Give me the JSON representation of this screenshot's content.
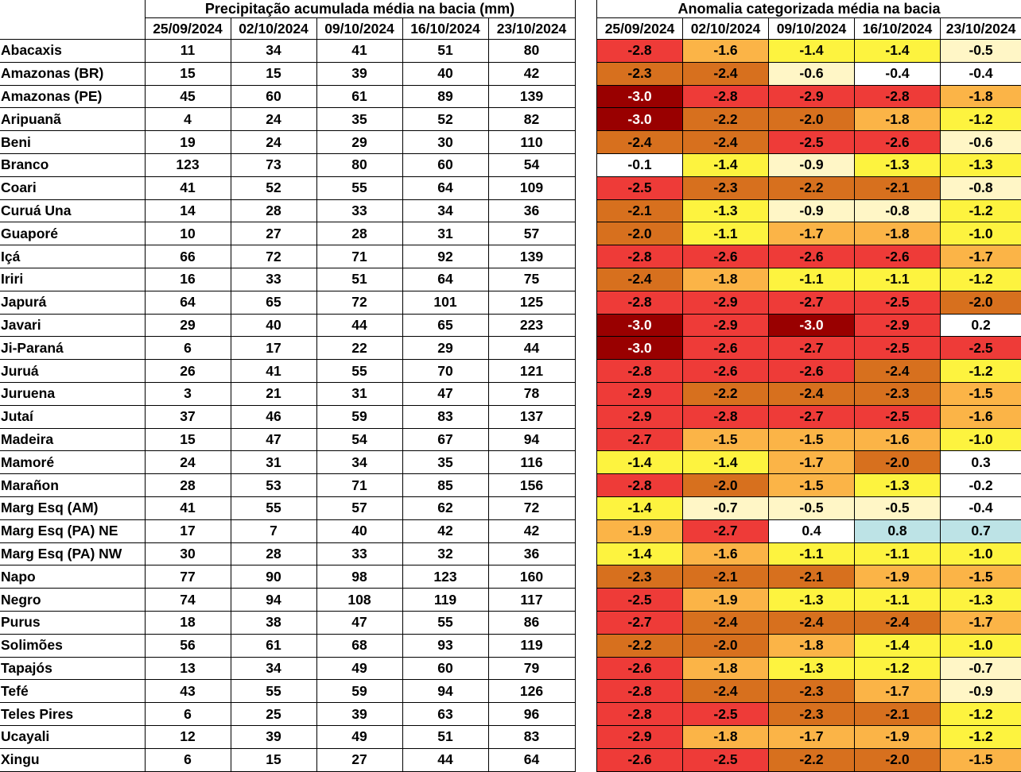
{
  "precip_title": "Precipitação acumulada média na bacia (mm)",
  "anom_title": "Anomalia categorizada média na bacia",
  "dates": [
    "25/09/2024",
    "02/10/2024",
    "09/10/2024",
    "16/10/2024",
    "23/10/2024"
  ],
  "category_colors": {
    "-3": "#990000",
    "-2.5": "#ee3b38",
    "-2": "#d7701e",
    "-1.5": "#fbb447",
    "-1": "#fdf33f",
    "-0.5": "#fff6c6",
    "0": "#ffffff",
    "0.5": "#bde3e6"
  },
  "rows": [
    {
      "name": "Abacaxis",
      "precip": [
        "11",
        "34",
        "41",
        "51",
        "80"
      ],
      "anom": [
        "-2.8",
        "-1.6",
        "-1.4",
        "-1.4",
        "-0.5"
      ]
    },
    {
      "name": "Amazonas (BR)",
      "precip": [
        "15",
        "15",
        "39",
        "40",
        "42"
      ],
      "anom": [
        "-2.3",
        "-2.4",
        "-0.6",
        "-0.4",
        "-0.4"
      ]
    },
    {
      "name": "Amazonas (PE)",
      "precip": [
        "45",
        "60",
        "61",
        "89",
        "139"
      ],
      "anom": [
        "-3.0",
        "-2.8",
        "-2.9",
        "-2.8",
        "-1.8"
      ]
    },
    {
      "name": "Aripuanã",
      "precip": [
        "4",
        "24",
        "35",
        "52",
        "82"
      ],
      "anom": [
        "-3.0",
        "-2.2",
        "-2.0",
        "-1.8",
        "-1.2"
      ]
    },
    {
      "name": "Beni",
      "precip": [
        "19",
        "24",
        "29",
        "30",
        "110"
      ],
      "anom": [
        "-2.4",
        "-2.4",
        "-2.5",
        "-2.6",
        "-0.6"
      ]
    },
    {
      "name": "Branco",
      "precip": [
        "123",
        "73",
        "80",
        "60",
        "54"
      ],
      "anom": [
        "-0.1",
        "-1.4",
        "-0.9",
        "-1.3",
        "-1.3"
      ]
    },
    {
      "name": "Coari",
      "precip": [
        "41",
        "52",
        "55",
        "64",
        "109"
      ],
      "anom": [
        "-2.5",
        "-2.3",
        "-2.2",
        "-2.1",
        "-0.8"
      ]
    },
    {
      "name": "Curuá Una",
      "precip": [
        "14",
        "28",
        "33",
        "34",
        "36"
      ],
      "anom": [
        "-2.1",
        "-1.3",
        "-0.9",
        "-0.8",
        "-1.2"
      ]
    },
    {
      "name": "Guaporé",
      "precip": [
        "10",
        "27",
        "28",
        "31",
        "57"
      ],
      "anom": [
        "-2.0",
        "-1.1",
        "-1.7",
        "-1.8",
        "-1.0"
      ]
    },
    {
      "name": "Içá",
      "precip": [
        "66",
        "72",
        "71",
        "92",
        "139"
      ],
      "anom": [
        "-2.8",
        "-2.6",
        "-2.6",
        "-2.6",
        "-1.7"
      ]
    },
    {
      "name": "Iriri",
      "precip": [
        "16",
        "33",
        "51",
        "64",
        "75"
      ],
      "anom": [
        "-2.4",
        "-1.8",
        "-1.1",
        "-1.1",
        "-1.2"
      ]
    },
    {
      "name": "Japurá",
      "precip": [
        "64",
        "65",
        "72",
        "101",
        "125"
      ],
      "anom": [
        "-2.8",
        "-2.9",
        "-2.7",
        "-2.5",
        "-2.0"
      ]
    },
    {
      "name": "Javari",
      "precip": [
        "29",
        "40",
        "44",
        "65",
        "223"
      ],
      "anom": [
        "-3.0",
        "-2.9",
        "-3.0",
        "-2.9",
        "0.2"
      ]
    },
    {
      "name": "Ji-Paraná",
      "precip": [
        "6",
        "17",
        "22",
        "29",
        "44"
      ],
      "anom": [
        "-3.0",
        "-2.6",
        "-2.7",
        "-2.5",
        "-2.5"
      ]
    },
    {
      "name": "Juruá",
      "precip": [
        "26",
        "41",
        "55",
        "70",
        "121"
      ],
      "anom": [
        "-2.8",
        "-2.6",
        "-2.6",
        "-2.4",
        "-1.2"
      ]
    },
    {
      "name": "Juruena",
      "precip": [
        "3",
        "21",
        "31",
        "47",
        "78"
      ],
      "anom": [
        "-2.9",
        "-2.2",
        "-2.4",
        "-2.3",
        "-1.5"
      ]
    },
    {
      "name": "Jutaí",
      "precip": [
        "37",
        "46",
        "59",
        "83",
        "137"
      ],
      "anom": [
        "-2.9",
        "-2.8",
        "-2.7",
        "-2.5",
        "-1.6"
      ]
    },
    {
      "name": "Madeira",
      "precip": [
        "15",
        "47",
        "54",
        "67",
        "94"
      ],
      "anom": [
        "-2.7",
        "-1.5",
        "-1.5",
        "-1.6",
        "-1.0"
      ]
    },
    {
      "name": "Mamoré",
      "precip": [
        "24",
        "31",
        "34",
        "35",
        "116"
      ],
      "anom": [
        "-1.4",
        "-1.4",
        "-1.7",
        "-2.0",
        "0.3"
      ]
    },
    {
      "name": "Marañon",
      "precip": [
        "28",
        "53",
        "71",
        "85",
        "156"
      ],
      "anom": [
        "-2.8",
        "-2.0",
        "-1.5",
        "-1.3",
        "-0.2"
      ]
    },
    {
      "name": "Marg Esq (AM)",
      "precip": [
        "41",
        "55",
        "57",
        "62",
        "72"
      ],
      "anom": [
        "-1.4",
        "-0.7",
        "-0.5",
        "-0.5",
        "-0.4"
      ]
    },
    {
      "name": "Marg Esq (PA) NE",
      "precip": [
        "17",
        "7",
        "40",
        "42",
        "42"
      ],
      "anom": [
        "-1.9",
        "-2.7",
        "0.4",
        "0.8",
        "0.7"
      ]
    },
    {
      "name": "Marg Esq (PA) NW",
      "precip": [
        "30",
        "28",
        "33",
        "32",
        "36"
      ],
      "anom": [
        "-1.4",
        "-1.6",
        "-1.1",
        "-1.1",
        "-1.0"
      ]
    },
    {
      "name": "Napo",
      "precip": [
        "77",
        "90",
        "98",
        "123",
        "160"
      ],
      "anom": [
        "-2.3",
        "-2.1",
        "-2.1",
        "-1.9",
        "-1.5"
      ]
    },
    {
      "name": "Negro",
      "precip": [
        "74",
        "94",
        "108",
        "119",
        "117"
      ],
      "anom": [
        "-2.5",
        "-1.9",
        "-1.3",
        "-1.1",
        "-1.3"
      ]
    },
    {
      "name": "Purus",
      "precip": [
        "18",
        "38",
        "47",
        "55",
        "86"
      ],
      "anom": [
        "-2.7",
        "-2.4",
        "-2.4",
        "-2.4",
        "-1.7"
      ]
    },
    {
      "name": "Solimões",
      "precip": [
        "56",
        "61",
        "68",
        "93",
        "119"
      ],
      "anom": [
        "-2.2",
        "-2.0",
        "-1.8",
        "-1.4",
        "-1.0"
      ]
    },
    {
      "name": "Tapajós",
      "precip": [
        "13",
        "34",
        "49",
        "60",
        "79"
      ],
      "anom": [
        "-2.6",
        "-1.8",
        "-1.3",
        "-1.2",
        "-0.7"
      ]
    },
    {
      "name": "Tefé",
      "precip": [
        "43",
        "55",
        "59",
        "94",
        "126"
      ],
      "anom": [
        "-2.8",
        "-2.4",
        "-2.3",
        "-1.7",
        "-0.9"
      ]
    },
    {
      "name": "Teles Pires",
      "precip": [
        "6",
        "25",
        "39",
        "63",
        "96"
      ],
      "anom": [
        "-2.8",
        "-2.5",
        "-2.3",
        "-2.1",
        "-1.2"
      ]
    },
    {
      "name": "Ucayali",
      "precip": [
        "12",
        "39",
        "49",
        "51",
        "83"
      ],
      "anom": [
        "-2.9",
        "-1.8",
        "-1.7",
        "-1.9",
        "-1.2"
      ]
    },
    {
      "name": "Xingu",
      "precip": [
        "6",
        "15",
        "27",
        "44",
        "64"
      ],
      "anom": [
        "-2.6",
        "-2.5",
        "-2.2",
        "-2.0",
        "-1.5"
      ]
    }
  ]
}
